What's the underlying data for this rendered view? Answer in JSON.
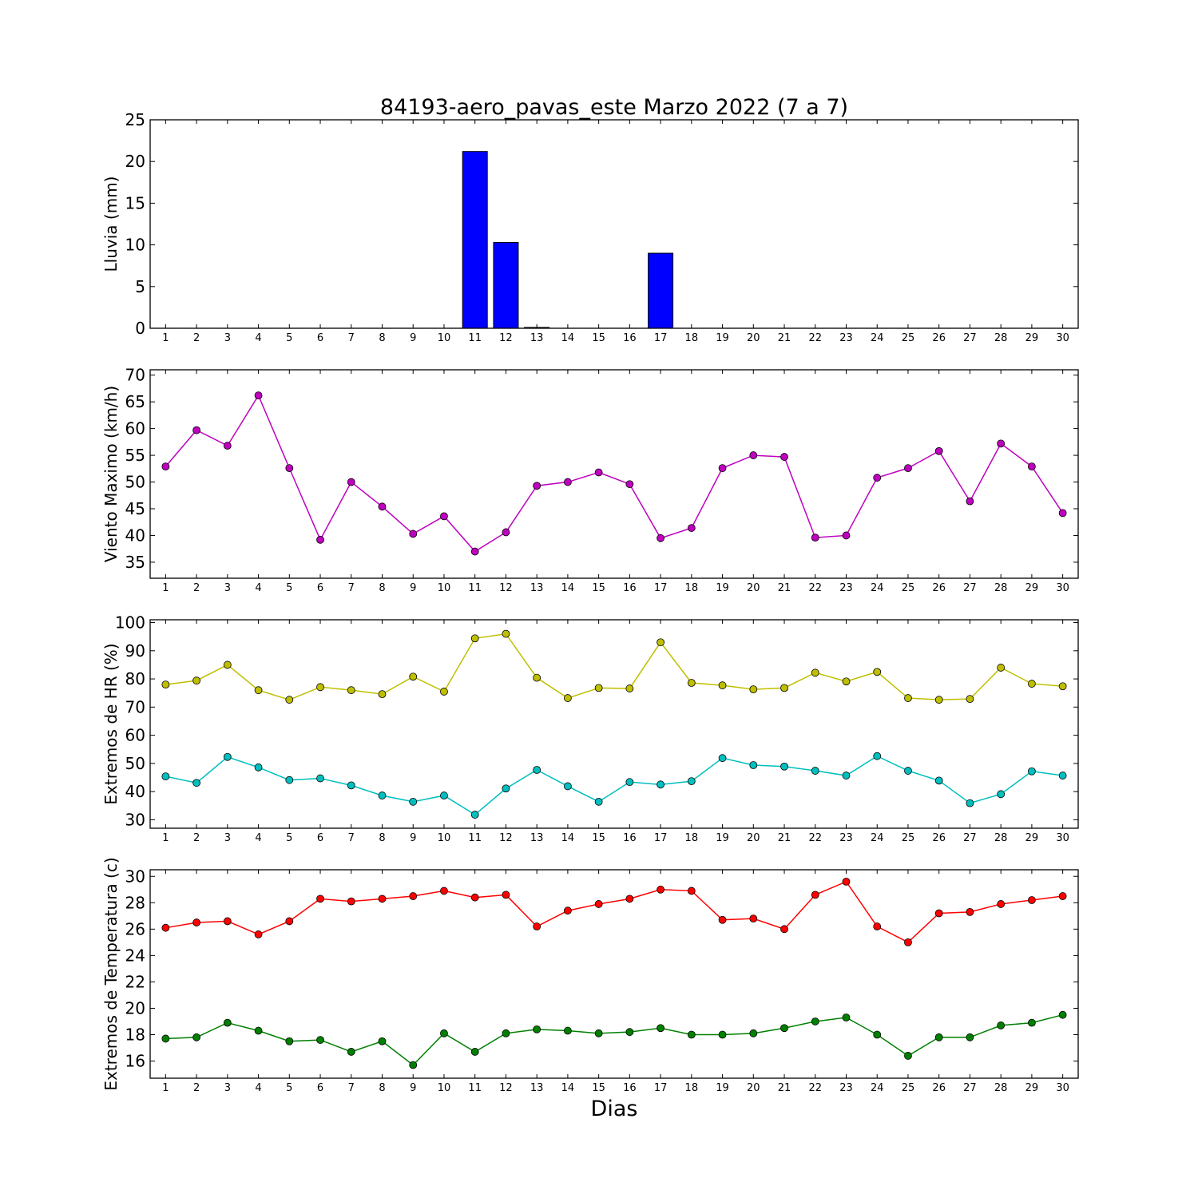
{
  "figure": {
    "title": "84193-aero_pavas_este Marzo 2022  (7 a 7)",
    "xlabel": "Dias"
  },
  "chart_data": [
    {
      "type": "bar",
      "ylabel": "Lluvia (mm)",
      "ylim": [
        0,
        25
      ],
      "yticks": [
        0,
        5,
        10,
        15,
        20,
        25
      ],
      "x": [
        1,
        2,
        3,
        4,
        5,
        6,
        7,
        8,
        9,
        10,
        11,
        12,
        13,
        14,
        15,
        16,
        17,
        18,
        19,
        20,
        21,
        22,
        23,
        24,
        25,
        26,
        27,
        28,
        29,
        30
      ],
      "xlim": [
        0.5,
        30.5
      ],
      "grid": false,
      "series": [
        {
          "color": "#0000ff",
          "values": [
            0,
            0,
            0,
            0,
            0,
            0,
            0,
            0,
            0,
            0,
            21.2,
            10.3,
            0.1,
            0,
            0,
            0,
            9.0,
            0,
            0,
            0,
            0,
            0,
            0,
            0,
            0,
            0,
            0,
            0,
            0,
            0
          ]
        }
      ]
    },
    {
      "type": "line",
      "ylabel": "Viento Maximo (km/h)",
      "ylim": [
        32,
        71
      ],
      "yticks": [
        35,
        40,
        45,
        50,
        55,
        60,
        65,
        70
      ],
      "x": [
        1,
        2,
        3,
        4,
        5,
        6,
        7,
        8,
        9,
        10,
        11,
        12,
        13,
        14,
        15,
        16,
        17,
        18,
        19,
        20,
        21,
        22,
        23,
        24,
        25,
        26,
        27,
        28,
        29,
        30
      ],
      "xlim": [
        0.5,
        30.5
      ],
      "grid": false,
      "series": [
        {
          "color": "#bf00bf",
          "values": [
            52.9,
            59.7,
            56.8,
            66.2,
            52.6,
            39.2,
            50.0,
            45.4,
            40.3,
            43.6,
            37.0,
            40.6,
            49.3,
            50.0,
            51.8,
            49.6,
            39.5,
            41.4,
            52.6,
            55.0,
            54.7,
            39.6,
            40.0,
            50.8,
            52.6,
            55.8,
            46.4,
            57.2,
            52.9,
            44.2
          ]
        }
      ]
    },
    {
      "type": "line",
      "ylabel": "Extremos de HR (%)",
      "ylim": [
        27,
        101
      ],
      "yticks": [
        30,
        40,
        50,
        60,
        70,
        80,
        90,
        100
      ],
      "x": [
        1,
        2,
        3,
        4,
        5,
        6,
        7,
        8,
        9,
        10,
        11,
        12,
        13,
        14,
        15,
        16,
        17,
        18,
        19,
        20,
        21,
        22,
        23,
        24,
        25,
        26,
        27,
        28,
        29,
        30
      ],
      "xlim": [
        0.5,
        30.5
      ],
      "grid": false,
      "series": [
        {
          "color": "#bfbf00",
          "values": [
            78,
            79.4,
            85,
            76,
            72.6,
            77.1,
            76,
            74.6,
            80.8,
            75.5,
            94.4,
            96,
            80.4,
            73.2,
            76.8,
            76.6,
            93,
            78.6,
            77.7,
            76.3,
            76.8,
            82.2,
            79.1,
            82.5,
            73.2,
            72.6,
            72.9,
            84,
            78.3,
            77.4
          ]
        },
        {
          "color": "#00bfbf",
          "values": [
            45.4,
            43.1,
            52.3,
            48.6,
            44.1,
            44.7,
            42.2,
            38.6,
            36.4,
            38.6,
            31.8,
            41.1,
            47.7,
            41.9,
            36.4,
            43.4,
            42.5,
            43.7,
            51.9,
            49.4,
            48.9,
            47.4,
            45.7,
            52.6,
            47.4,
            43.9,
            35.9,
            39.1,
            47.2,
            45.7
          ]
        }
      ]
    },
    {
      "type": "line",
      "ylabel": "Extremos de Temperatura (c)",
      "ylim": [
        14.7,
        30.5
      ],
      "yticks": [
        16,
        18,
        20,
        22,
        24,
        26,
        28,
        30
      ],
      "x": [
        1,
        2,
        3,
        4,
        5,
        6,
        7,
        8,
        9,
        10,
        11,
        12,
        13,
        14,
        15,
        16,
        17,
        18,
        19,
        20,
        21,
        22,
        23,
        24,
        25,
        26,
        27,
        28,
        29,
        30
      ],
      "xlim": [
        0.5,
        30.5
      ],
      "grid": false,
      "series": [
        {
          "color": "#ff0000",
          "values": [
            26.1,
            26.5,
            26.6,
            25.6,
            26.6,
            28.3,
            28.1,
            28.3,
            28.5,
            28.9,
            28.4,
            28.6,
            26.2,
            27.4,
            27.9,
            28.3,
            29.0,
            28.9,
            26.7,
            26.8,
            26.0,
            28.6,
            29.6,
            26.2,
            25.0,
            27.2,
            27.3,
            27.9,
            28.2,
            28.5
          ]
        },
        {
          "color": "#008000",
          "values": [
            17.7,
            17.8,
            18.9,
            18.3,
            17.5,
            17.6,
            16.7,
            17.5,
            15.7,
            18.1,
            16.7,
            18.1,
            18.4,
            18.3,
            18.1,
            18.2,
            18.5,
            18.0,
            18.0,
            18.1,
            18.5,
            19.0,
            19.3,
            18.0,
            16.4,
            17.8,
            17.8,
            18.7,
            18.9,
            19.5
          ]
        }
      ]
    }
  ]
}
